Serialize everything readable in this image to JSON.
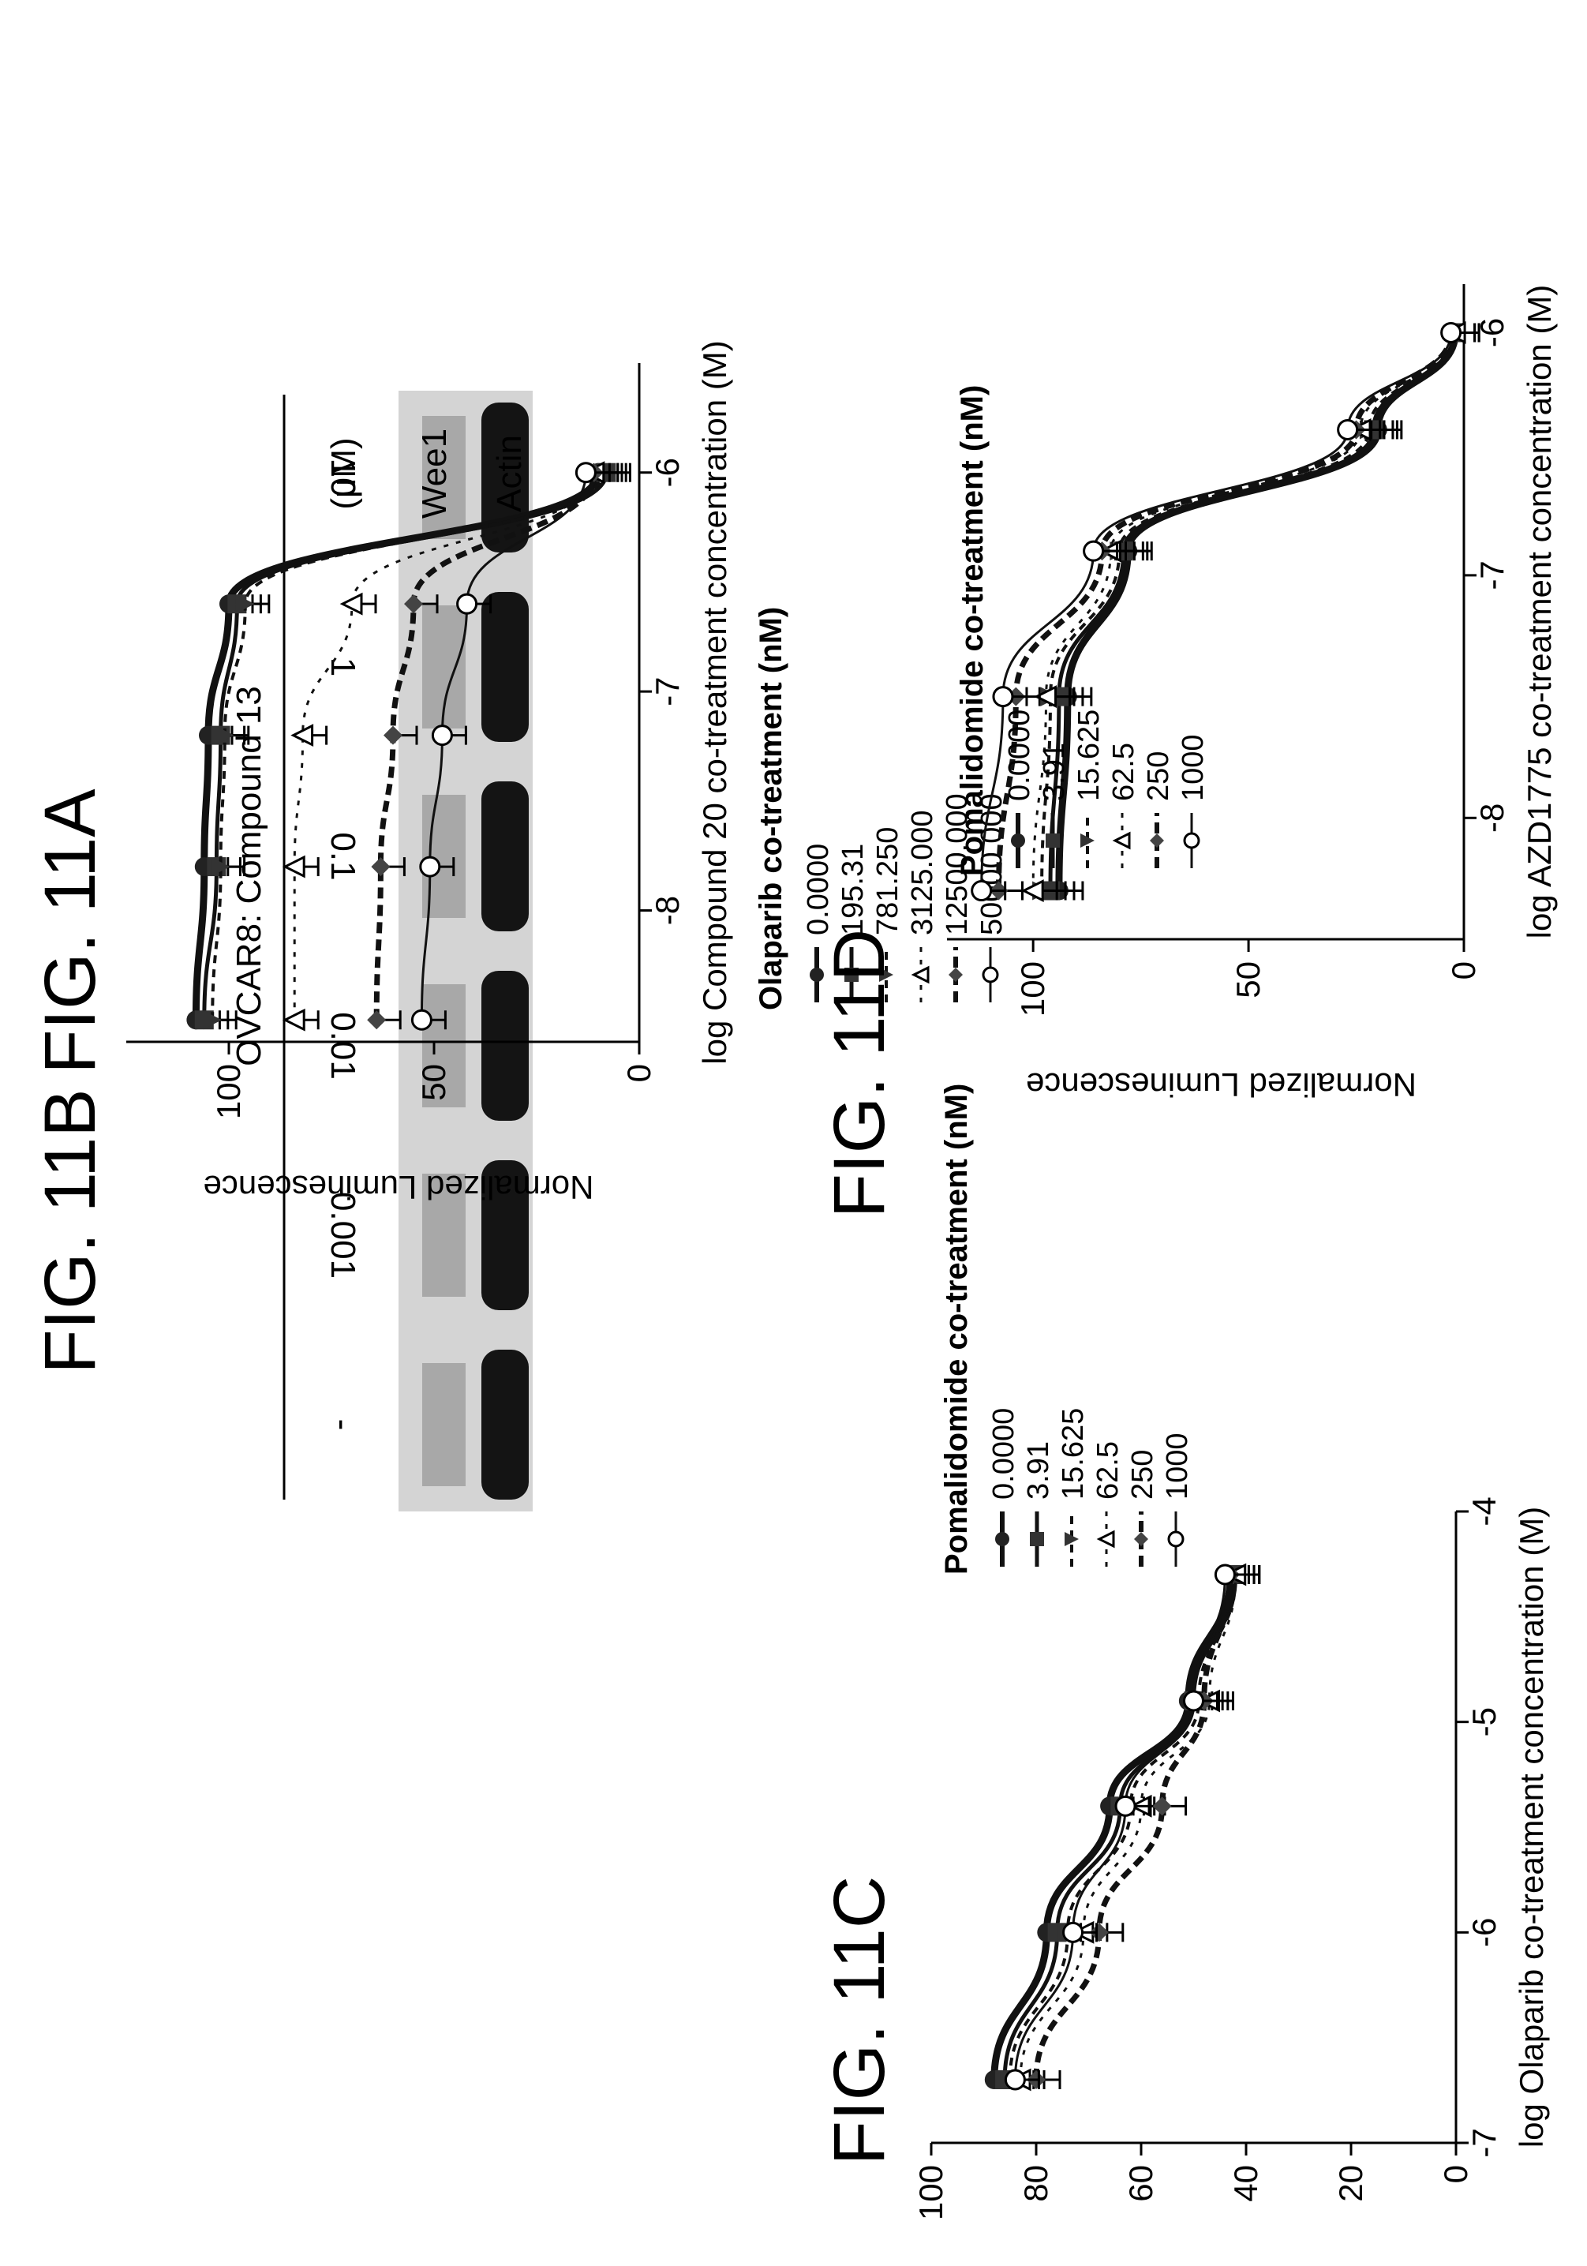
{
  "figures": {
    "a": {
      "title": "FIG. 11A",
      "header": "OVCAR8: Compound 13",
      "lanes": [
        "-",
        "0.001",
        "0.01",
        "0.1",
        "1",
        "10"
      ],
      "unit": "(μM)",
      "bands": [
        "Wee1",
        "Actin"
      ]
    }
  },
  "chart_data": [
    {
      "id": "b",
      "type": "line",
      "title": "FIG. 11B",
      "xlabel": "log Compound 20 co-treatment concentration (M)",
      "ylabel": "Normalized Luminescence",
      "xlim": [
        -8.6,
        -5.5
      ],
      "ylim": [
        0,
        125
      ],
      "xticks": [
        -8,
        -7,
        -6
      ],
      "yticks": [
        0,
        50,
        100
      ],
      "legend_title": "Olaparib co-treatment (nM)",
      "x": [
        -8.5,
        -7.8,
        -7.2,
        -6.6,
        -6.0
      ],
      "series": [
        {
          "name": "0.0000",
          "values": [
            108,
            106,
            105,
            100,
            10
          ]
        },
        {
          "name": "195.31",
          "values": [
            106,
            103,
            102,
            98,
            8
          ]
        },
        {
          "name": "781.250",
          "values": [
            104,
            102,
            101,
            96,
            9
          ]
        },
        {
          "name": "3125.000",
          "values": [
            84,
            84,
            82,
            70,
            11
          ]
        },
        {
          "name": "12500.000",
          "values": [
            64,
            63,
            60,
            55,
            11
          ]
        },
        {
          "name": "50000.000",
          "values": [
            53,
            51,
            48,
            42,
            13
          ]
        }
      ]
    },
    {
      "id": "c",
      "type": "line",
      "title": "FIG. 11C",
      "xlabel": "log Olaparib co-treatment concentration (M)",
      "ylabel": "Normalized Luminescence",
      "xlim": [
        -7,
        -4
      ],
      "ylim": [
        0,
        100
      ],
      "xticks": [
        -7,
        -6,
        -5,
        -4
      ],
      "yticks": [
        0,
        20,
        40,
        60,
        80,
        100
      ],
      "legend_title": "Pomalidomide co-treatment (nM)",
      "x": [
        -6.7,
        -6.0,
        -5.4,
        -4.9,
        -4.3
      ],
      "series": [
        {
          "name": "0.0000",
          "values": [
            88,
            78,
            66,
            51,
            43
          ]
        },
        {
          "name": "3.91",
          "values": [
            86,
            76,
            64,
            50,
            42
          ]
        },
        {
          "name": "15.625",
          "values": [
            85,
            74,
            62,
            49,
            42
          ]
        },
        {
          "name": "62.5",
          "values": [
            83,
            71,
            60,
            47,
            42
          ]
        },
        {
          "name": "250",
          "values": [
            80,
            68,
            56,
            48,
            43
          ]
        },
        {
          "name": "1000",
          "values": [
            84,
            73,
            63,
            50,
            44
          ]
        }
      ]
    },
    {
      "id": "d",
      "type": "line",
      "title": "FIG. 11D",
      "xlabel": "log AZD1775 co-treatment concentration (M)",
      "ylabel": "Normalized Luminescence",
      "xlim": [
        -8.5,
        -5.8
      ],
      "ylim": [
        0,
        120
      ],
      "xticks": [
        -8,
        -7,
        -6
      ],
      "yticks": [
        0,
        50,
        100
      ],
      "legend_title": "Pomalidomide co-treatment (nM)",
      "x": [
        -8.3,
        -7.5,
        -6.9,
        -6.4,
        -6.0
      ],
      "series": [
        {
          "name": "0.0000",
          "values": [
            94,
            92,
            78,
            20,
            2
          ]
        },
        {
          "name": "3.91",
          "values": [
            96,
            94,
            79,
            21,
            2
          ]
        },
        {
          "name": "15.625",
          "values": [
            98,
            96,
            80,
            22,
            2
          ]
        },
        {
          "name": "62.5",
          "values": [
            100,
            97,
            82,
            24,
            2
          ]
        },
        {
          "name": "250",
          "values": [
            108,
            104,
            84,
            25,
            3
          ]
        },
        {
          "name": "1000",
          "values": [
            112,
            107,
            86,
            27,
            3
          ]
        }
      ]
    }
  ]
}
